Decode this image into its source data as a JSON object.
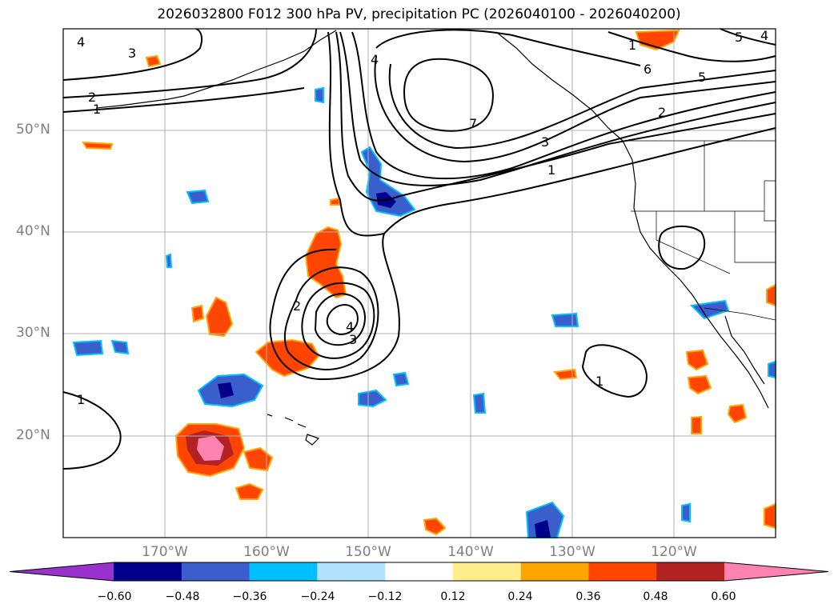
{
  "title": "2026032800 F012 300 hPa PV, precipitation PC (2026040100 - 2026040200)",
  "lat_labels": [
    "50°N",
    "40°N",
    "30°N",
    "20°N"
  ],
  "lon_labels": [
    "170°W",
    "160°W",
    "150°W",
    "140°W",
    "130°W",
    "120°W"
  ],
  "contour_labels": [
    "4",
    "3",
    "2",
    "1",
    "4",
    "7",
    "6",
    "5",
    "5",
    "2",
    "3",
    "1",
    "2",
    "4",
    "3",
    "1",
    "1",
    "1",
    "4"
  ],
  "colorbar": {
    "ticks": [
      "−0.60",
      "−0.48",
      "−0.36",
      "−0.24",
      "−0.12",
      "0.12",
      "0.24",
      "0.36",
      "0.48",
      "0.60"
    ],
    "colors": [
      "#9932cc",
      "#00008b",
      "#3a5fcd",
      "#00bfff",
      "#b0e2ff",
      "#ffffff",
      "#ffec8b",
      "#ffa500",
      "#ff4500",
      "#b22222",
      "#ff83b0"
    ]
  },
  "colors": {
    "neg_strong": "#00008b",
    "neg_mid": "#3a5fcd",
    "neg_light": "#00bfff",
    "neg_pale": "#b0e2ff",
    "pos_pale": "#ffec8b",
    "pos_light": "#ffa500",
    "pos_mid": "#ff4500",
    "pos_strong": "#b22222",
    "pos_max": "#ff83b0"
  }
}
